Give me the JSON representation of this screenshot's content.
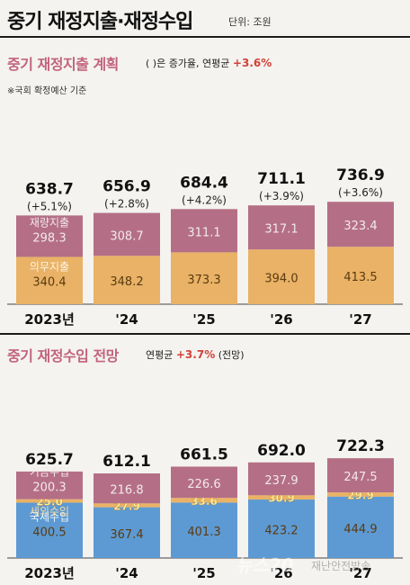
{
  "header": {
    "title": "중기 재정지출·재정수입",
    "unit": "단위: 조원"
  },
  "chart_data": [
    {
      "type": "bar",
      "title": "중기 재정지출 계획",
      "note": "( )은 증가율, 연평균",
      "note_value": "+3.6%",
      "source": "※국회 확정예산 기준",
      "categories": [
        "2023년",
        "'24",
        "'25",
        "'26",
        "'27"
      ],
      "totals": [
        "638.7",
        "656.9",
        "684.4",
        "711.1",
        "736.9"
      ],
      "growth": [
        "(+5.1%)",
        "(+2.8%)",
        "(+4.2%)",
        "(+3.9%)",
        "(+3.6%)"
      ],
      "series": [
        {
          "name": "의무지출",
          "color": "#e9b266",
          "values": [
            340.4,
            348.2,
            373.3,
            394.0,
            413.5
          ]
        },
        {
          "name": "재량지출",
          "color": "#b46f86",
          "values": [
            298.3,
            308.7,
            311.1,
            317.1,
            323.4
          ]
        }
      ],
      "ylim": [
        0,
        760
      ]
    },
    {
      "type": "bar",
      "title": "중기 재정수입 전망",
      "note": "연평균",
      "note_value": "+3.7%",
      "note_suffix": "(전망)",
      "categories": [
        "2023년",
        "'24",
        "'25",
        "'26",
        "'27"
      ],
      "totals": [
        "625.7",
        "612.1",
        "661.5",
        "692.0",
        "722.3"
      ],
      "series": [
        {
          "name": "국세수입",
          "color": "#5d9ad3",
          "values": [
            400.5,
            367.4,
            401.3,
            423.2,
            444.9
          ]
        },
        {
          "name": "세외수입",
          "color": "#e9b266",
          "values": [
            25.0,
            27.9,
            33.6,
            30.9,
            29.9
          ]
        },
        {
          "name": "기금수입",
          "color": "#b46f86",
          "values": [
            200.3,
            216.8,
            226.6,
            237.9,
            247.5
          ]
        }
      ],
      "ylim": [
        0,
        760
      ]
    }
  ],
  "watermark": {
    "brand": "뉴스20",
    "sub": "재난안전방송"
  }
}
